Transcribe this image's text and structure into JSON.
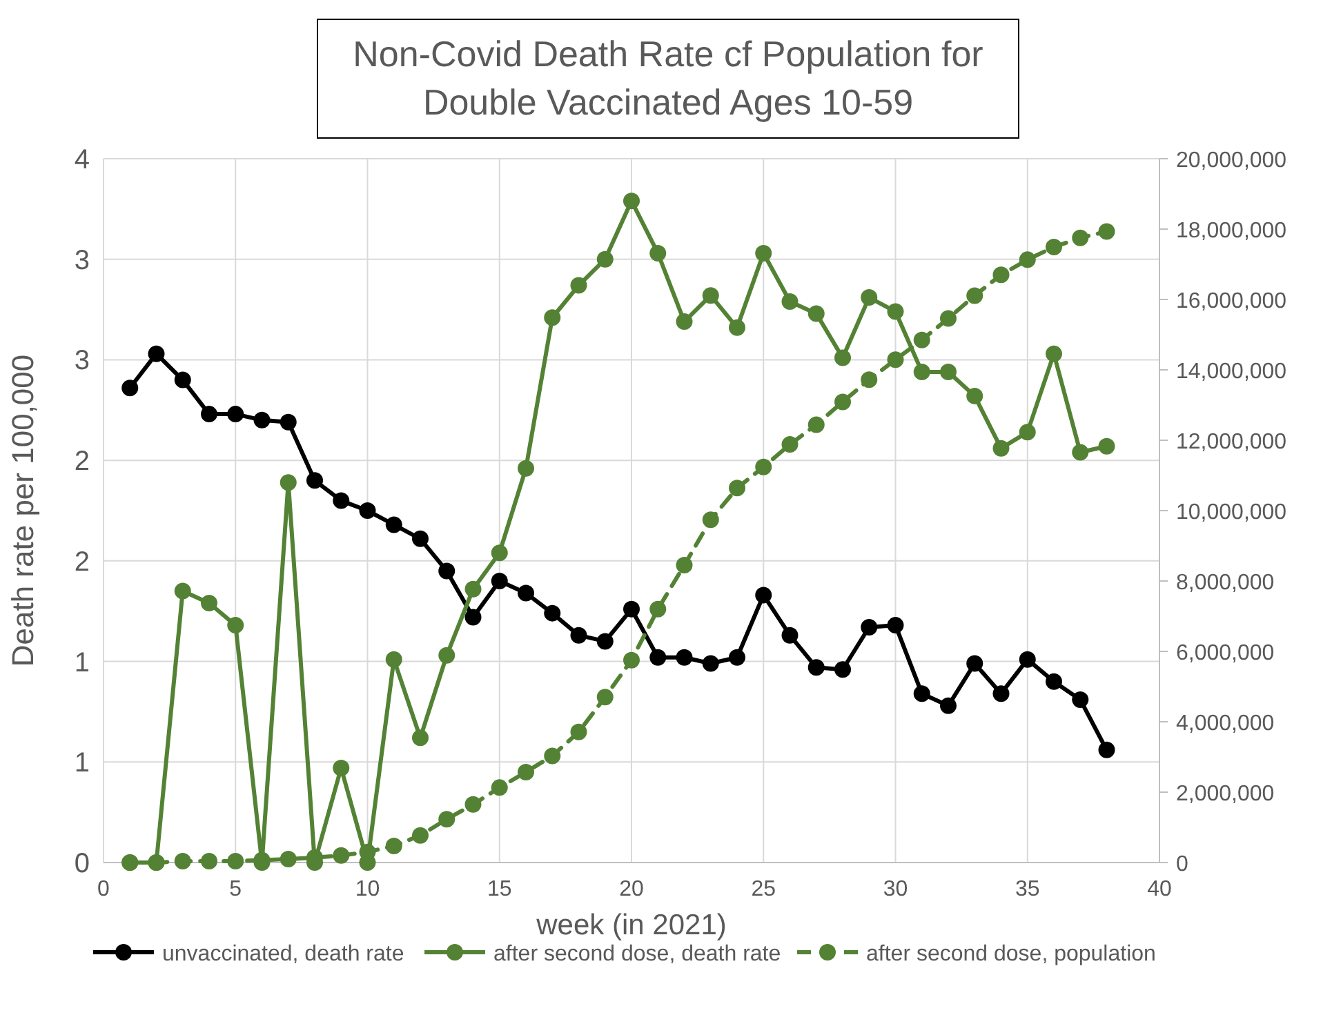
{
  "chart_data": {
    "type": "line",
    "title": "Non-Covid Death Rate cf Population for Double Vaccinated Ages 10-59",
    "xlabel": "week (in 2021)",
    "ylabel": "Death rate per 100,000",
    "x": [
      1,
      2,
      3,
      4,
      5,
      6,
      7,
      8,
      9,
      10,
      11,
      12,
      13,
      14,
      15,
      16,
      17,
      18,
      19,
      20,
      21,
      22,
      23,
      24,
      25,
      26,
      27,
      28,
      29,
      30,
      31,
      32,
      33,
      34,
      35,
      36,
      37,
      38
    ],
    "series": [
      {
        "name": "unvaccinated, death rate",
        "color": "#000000",
        "line_style": "solid",
        "values": [
          2.36,
          2.53,
          2.4,
          2.23,
          2.23,
          2.2,
          2.19,
          1.9,
          1.8,
          1.75,
          1.68,
          1.61,
          1.45,
          1.22,
          1.4,
          1.34,
          1.24,
          1.13,
          1.1,
          1.26,
          1.02,
          1.02,
          0.99,
          1.02,
          1.33,
          1.13,
          0.97,
          0.96,
          1.17,
          1.18,
          0.84,
          0.78,
          0.99,
          0.84,
          1.01,
          0.9,
          0.81,
          0.56
        ]
      },
      {
        "name": "after second dose, death rate",
        "color": "#548235",
        "line_style": "solid",
        "values": [
          0,
          0,
          1.35,
          1.29,
          1.18,
          0,
          1.89,
          0,
          0.47,
          0,
          1.01,
          0.62,
          1.03,
          1.36,
          1.54,
          1.96,
          2.71,
          2.87,
          3,
          3.29,
          3.03,
          2.69,
          2.82,
          2.66,
          3.03,
          2.79,
          2.73,
          2.51,
          2.81,
          2.74,
          2.44,
          2.44,
          2.32,
          2.06,
          2.14,
          2.53,
          2.04,
          2.07
        ]
      },
      {
        "name": "after second dose, population",
        "color": "#548235",
        "line_style": "dashed",
        "axis": "y2",
        "values": [
          0,
          0,
          40000,
          40000,
          40000,
          70000,
          100000,
          140000,
          200000,
          300000,
          470000,
          770000,
          1230000,
          1650000,
          2130000,
          2570000,
          3030000,
          3710000,
          4700000,
          5750000,
          7200000,
          8450000,
          9740000,
          10640000,
          11240000,
          11880000,
          12440000,
          13090000,
          13720000,
          14290000,
          14850000,
          15460000,
          16110000,
          16700000,
          17130000,
          17490000,
          17750000,
          17930000
        ]
      }
    ],
    "xlim": [
      0,
      40
    ],
    "xticks": [
      0,
      5,
      10,
      15,
      20,
      25,
      30,
      35,
      40
    ],
    "ylim": [
      0,
      3.5
    ],
    "yticks": [
      0,
      {
        "value": 0.5,
        "label": "1"
      },
      1,
      {
        "value": 1.5,
        "label": "2"
      },
      2,
      {
        "value": 2.5,
        "label": "3"
      },
      3,
      {
        "value": 3.5,
        "label": "4"
      }
    ],
    "y2lim": [
      0,
      20000000
    ],
    "y2ticks": [
      {
        "value": 0,
        "label": "0"
      },
      {
        "value": 2000000,
        "label": "2,000,000"
      },
      {
        "value": 4000000,
        "label": "4,000,000"
      },
      {
        "value": 6000000,
        "label": "6,000,000"
      },
      {
        "value": 8000000,
        "label": "8,000,000"
      },
      {
        "value": 10000000,
        "label": "10,000,000"
      },
      {
        "value": 12000000,
        "label": "12,000,000"
      },
      {
        "value": 14000000,
        "label": "14,000,000"
      },
      {
        "value": 16000000,
        "label": "16,000,000"
      },
      {
        "value": 18000000,
        "label": "18,000,000"
      },
      {
        "value": 20000000,
        "label": "20,000,000"
      }
    ],
    "grid": true,
    "legend": "bottom",
    "marker": "circle"
  }
}
